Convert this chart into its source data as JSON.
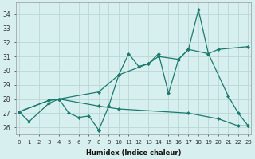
{
  "xlabel": "Humidex (Indice chaleur)",
  "background_color": "#d7efee",
  "grid_color": "#b8d8d6",
  "line_color": "#1a7a6e",
  "series1_x": [
    0,
    1,
    3,
    4,
    5,
    6,
    7,
    8,
    8,
    9,
    10,
    11,
    12,
    13,
    14,
    15,
    16,
    17,
    18,
    19,
    21,
    22,
    23
  ],
  "series1_y": [
    27.1,
    26.4,
    27.7,
    28.0,
    27.0,
    26.7,
    26.8,
    25.8,
    25.8,
    27.5,
    29.7,
    31.2,
    30.3,
    30.5,
    31.2,
    28.4,
    30.8,
    31.5,
    34.3,
    31.2,
    28.2,
    27.0,
    26.1
  ],
  "series2_x": [
    0,
    3,
    4,
    8,
    10,
    13,
    14,
    16,
    17,
    19,
    20,
    23
  ],
  "series2_y": [
    27.1,
    27.9,
    28.0,
    28.5,
    29.7,
    30.5,
    31.0,
    30.8,
    31.5,
    31.2,
    31.5,
    31.7
  ],
  "series3_x": [
    0,
    3,
    4,
    8,
    10,
    17,
    20,
    22,
    23
  ],
  "series3_y": [
    27.1,
    27.9,
    28.0,
    27.5,
    27.3,
    27.0,
    26.6,
    26.1,
    26.1
  ],
  "xlim": [
    -0.3,
    23.3
  ],
  "ylim": [
    25.5,
    34.8
  ],
  "yticks": [
    26,
    27,
    28,
    29,
    30,
    31,
    32,
    33,
    34
  ],
  "xticks": [
    0,
    1,
    2,
    3,
    4,
    5,
    6,
    7,
    8,
    9,
    10,
    11,
    12,
    13,
    14,
    15,
    16,
    17,
    18,
    19,
    20,
    21,
    22,
    23
  ]
}
